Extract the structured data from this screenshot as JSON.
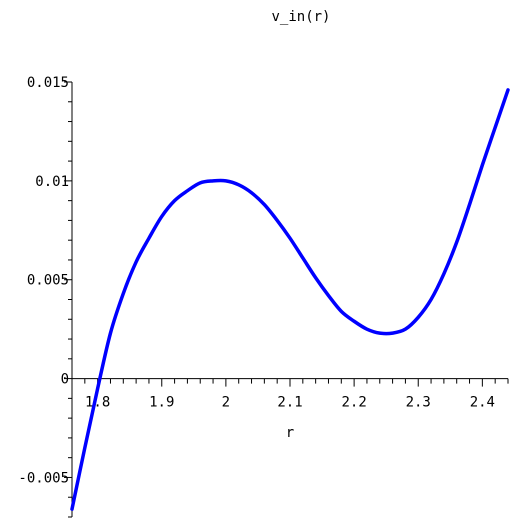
{
  "chart_data": {
    "type": "line",
    "title": "v_in(r)",
    "xlabel": "r",
    "ylabel": "",
    "xlim": [
      1.76,
      2.44
    ],
    "ylim": [
      -0.007,
      0.015
    ],
    "x_ticks": [
      1.8,
      1.9,
      2.0,
      2.1,
      2.2,
      2.3,
      2.4
    ],
    "x_tick_labels": [
      "1.8",
      "1.9",
      "2",
      "2.1",
      "2.2",
      "2.3",
      "2.4"
    ],
    "y_ticks": [
      -0.005,
      0,
      0.005,
      0.01,
      0.015
    ],
    "y_tick_labels": [
      "-0.005",
      "0",
      "0.005",
      "0.01",
      "0.015"
    ],
    "x_minor_step": 0.02,
    "y_minor_step": 0.001,
    "grid": false,
    "legend": "none",
    "color": "#0000ff",
    "series": [
      {
        "x": [
          1.76,
          1.78,
          1.8,
          1.82,
          1.84,
          1.86,
          1.88,
          1.9,
          1.92,
          1.94,
          1.96,
          1.98,
          2.0,
          2.02,
          2.04,
          2.06,
          2.08,
          2.1,
          2.12,
          2.14,
          2.16,
          2.18,
          2.2,
          2.22,
          2.24,
          2.26,
          2.28,
          2.3,
          2.32,
          2.34,
          2.36,
          2.38,
          2.4,
          2.42,
          2.44
        ],
        "y": [
          -0.0066,
          -0.0035,
          -0.0005,
          0.0023,
          0.0043,
          0.0059,
          0.0071,
          0.0082,
          0.009,
          0.0095,
          0.0099,
          0.01,
          0.01,
          0.0098,
          0.0094,
          0.0088,
          0.008,
          0.0071,
          0.0061,
          0.0051,
          0.0042,
          0.0034,
          0.0029,
          0.0025,
          0.0023,
          0.0023,
          0.0025,
          0.0031,
          0.004,
          0.0053,
          0.0069,
          0.0088,
          0.0108,
          0.0127,
          0.0146
        ]
      }
    ]
  }
}
